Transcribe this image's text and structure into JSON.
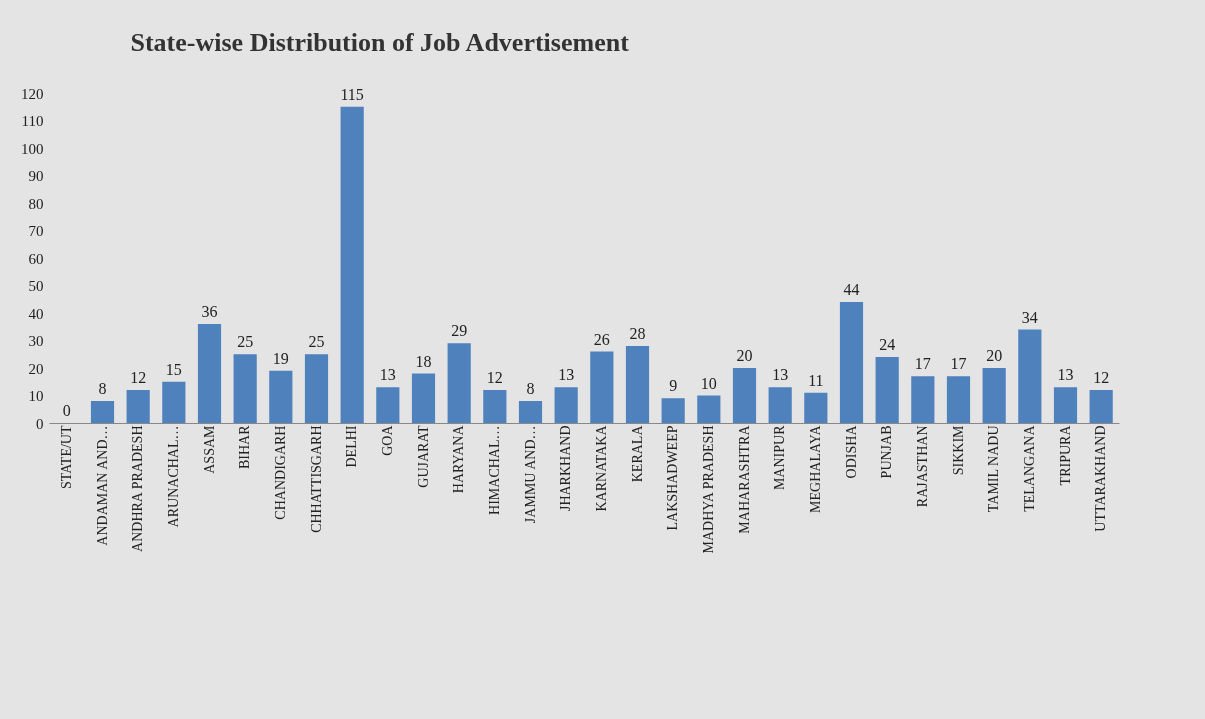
{
  "chart_data": {
    "type": "bar",
    "title": "State-wise Distribution of Job Advertisement",
    "categories": [
      "STATE/UT",
      "ANDAMAN AND…",
      "ANDHRA PRADESH",
      "ARUNACHAL…",
      "ASSAM",
      "BIHAR",
      "CHANDIGARH",
      "CHHATTISGARH",
      "DELHI",
      "GOA",
      "GUJARAT",
      "HARYANA",
      "HIMACHAL…",
      "JAMMU AND…",
      "JHARKHAND",
      "KARNATAKA",
      "KERALA",
      "LAKSHADWEEP",
      "MADHYA PRADESH",
      "MAHARASHTRA",
      "MANIPUR",
      "MEGHALAYA",
      "ODISHA",
      "PUNJAB",
      "RAJASTHAN",
      "SIKKIM",
      "TAMIL NADU",
      "TELANGANA",
      "TRIPURA",
      "UTTARAKHAND"
    ],
    "values": [
      0,
      8,
      12,
      15,
      36,
      25,
      19,
      25,
      115,
      13,
      18,
      29,
      12,
      8,
      13,
      26,
      28,
      9,
      10,
      20,
      13,
      11,
      44,
      24,
      17,
      17,
      20,
      34,
      13,
      12
    ],
    "color": "#4f81bd",
    "ylim": [
      0,
      120
    ],
    "yticks": [
      0,
      10,
      20,
      30,
      40,
      50,
      60,
      70,
      80,
      90,
      100,
      110,
      120
    ],
    "grid": false,
    "data_labels": true
  }
}
